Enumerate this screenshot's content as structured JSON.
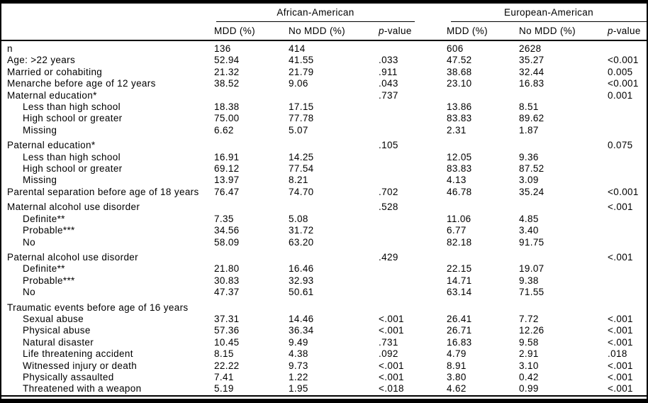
{
  "table": {
    "group_headers": {
      "aa": "African-American",
      "ea": "European-American"
    },
    "columns": {
      "mdd": "MDD (%)",
      "no_mdd": "No MDD (%)",
      "p_italic": "p",
      "p_rest": "-value"
    },
    "rows": [
      {
        "label": "n",
        "indent": false,
        "gap": false,
        "values": [
          "136",
          "414",
          "",
          "606",
          "2628",
          ""
        ]
      },
      {
        "label": "Age: >22 years",
        "indent": false,
        "gap": false,
        "values": [
          "52.94",
          "41.55",
          ".033",
          "47.52",
          "35.27",
          "<0.001"
        ]
      },
      {
        "label": "Married or cohabiting",
        "indent": false,
        "gap": false,
        "values": [
          "21.32",
          "21.79",
          ".911",
          "38.68",
          "32.44",
          "0.005"
        ]
      },
      {
        "label": "Menarche before age of 12 years",
        "indent": false,
        "gap": false,
        "values": [
          "38.52",
          "9.06",
          ".043",
          "23.10",
          "16.83",
          "<0.001"
        ]
      },
      {
        "label": "Maternal education*",
        "indent": false,
        "gap": false,
        "values": [
          "",
          "",
          ".737",
          "",
          "",
          "0.001"
        ]
      },
      {
        "label": "Less than high school",
        "indent": true,
        "gap": false,
        "values": [
          "18.38",
          "17.15",
          "",
          "13.86",
          "8.51",
          ""
        ]
      },
      {
        "label": "High school or greater",
        "indent": true,
        "gap": false,
        "values": [
          "75.00",
          "77.78",
          "",
          "83.83",
          "89.62",
          ""
        ]
      },
      {
        "label": "Missing",
        "indent": true,
        "gap": false,
        "values": [
          "6.62",
          "5.07",
          "",
          "2.31",
          "1.87",
          ""
        ]
      },
      {
        "label": "Paternal education*",
        "indent": false,
        "gap": true,
        "values": [
          "",
          "",
          ".105",
          "",
          "",
          "0.075"
        ]
      },
      {
        "label": "Less than high school",
        "indent": true,
        "gap": false,
        "values": [
          "16.91",
          "14.25",
          "",
          "12.05",
          "9.36",
          ""
        ]
      },
      {
        "label": "High school or greater",
        "indent": true,
        "gap": false,
        "values": [
          "69.12",
          "77.54",
          "",
          "83.83",
          "87.52",
          ""
        ]
      },
      {
        "label": "Missing",
        "indent": true,
        "gap": false,
        "values": [
          "13.97",
          "8.21",
          "",
          "4.13",
          "3.09",
          ""
        ]
      },
      {
        "label": "Parental separation before age of 18 years",
        "indent": false,
        "gap": false,
        "values": [
          "76.47",
          "74.70",
          ".702",
          "46.78",
          "35.24",
          "<0.001"
        ]
      },
      {
        "label": "Maternal alcohol use disorder",
        "indent": false,
        "gap": true,
        "values": [
          "",
          "",
          ".528",
          "",
          "",
          "<.001"
        ]
      },
      {
        "label": "Definite**",
        "indent": true,
        "gap": false,
        "values": [
          "7.35",
          "5.08",
          "",
          "11.06",
          "4.85",
          ""
        ]
      },
      {
        "label": "Probable***",
        "indent": true,
        "gap": false,
        "values": [
          "34.56",
          "31.72",
          "",
          "6.77",
          "3.40",
          ""
        ]
      },
      {
        "label": "No",
        "indent": true,
        "gap": false,
        "values": [
          "58.09",
          "63.20",
          "",
          "82.18",
          "91.75",
          ""
        ]
      },
      {
        "label": "Paternal alcohol use disorder",
        "indent": false,
        "gap": true,
        "values": [
          "",
          "",
          ".429",
          "",
          "",
          "<.001"
        ]
      },
      {
        "label": "Definite**",
        "indent": true,
        "gap": false,
        "values": [
          "21.80",
          "16.46",
          "",
          "22.15",
          "19.07",
          ""
        ]
      },
      {
        "label": "Probable***",
        "indent": true,
        "gap": false,
        "values": [
          "30.83",
          "32.93",
          "",
          "14.71",
          "9.38",
          ""
        ]
      },
      {
        "label": "No",
        "indent": true,
        "gap": false,
        "values": [
          "47.37",
          "50.61",
          "",
          "63.14",
          "71.55",
          ""
        ]
      },
      {
        "label": "Traumatic events before age of 16 years",
        "indent": false,
        "gap": true,
        "values": [
          "",
          "",
          "",
          "",
          "",
          ""
        ]
      },
      {
        "label": "Sexual abuse",
        "indent": true,
        "gap": false,
        "values": [
          "37.31",
          "14.46",
          "<.001",
          "26.41",
          "7.72",
          "<.001"
        ]
      },
      {
        "label": "Physical abuse",
        "indent": true,
        "gap": false,
        "values": [
          "57.36",
          "36.34",
          "<.001",
          "26.71",
          "12.26",
          "<.001"
        ]
      },
      {
        "label": "Natural disaster",
        "indent": true,
        "gap": false,
        "values": [
          "10.45",
          "9.49",
          ".731",
          "16.83",
          "9.58",
          "<.001"
        ]
      },
      {
        "label": "Life threatening accident",
        "indent": true,
        "gap": false,
        "values": [
          "8.15",
          "4.38",
          ".092",
          "4.79",
          "2.91",
          ".018"
        ]
      },
      {
        "label": "Witnessed injury or death",
        "indent": true,
        "gap": false,
        "values": [
          "22.22",
          "9.73",
          "<.001",
          "8.91",
          "3.10",
          "<.001"
        ]
      },
      {
        "label": "Physically assaulted",
        "indent": true,
        "gap": false,
        "values": [
          "7.41",
          "1.22",
          "<.001",
          "3.80",
          "0.42",
          "<.001"
        ]
      },
      {
        "label": "Threatened with a weapon",
        "indent": true,
        "gap": false,
        "values": [
          "5.19",
          "1.95",
          "<.018",
          "4.62",
          "0.99",
          "<.001"
        ]
      }
    ]
  },
  "colors": {
    "border": "#000000",
    "text": "#000000",
    "background": "#ffffff"
  }
}
